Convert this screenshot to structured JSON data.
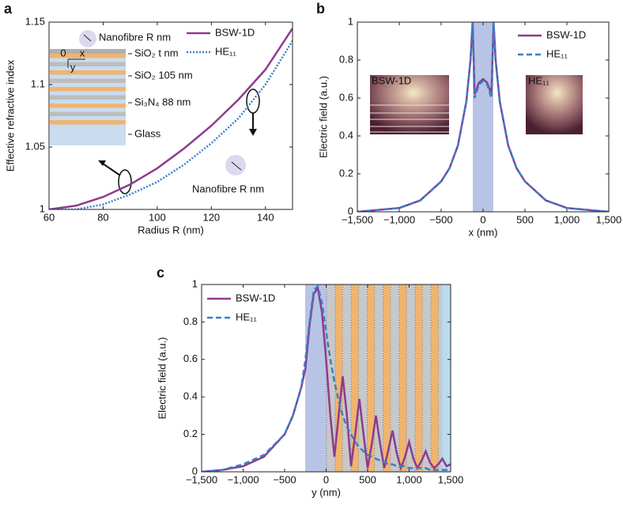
{
  "chart_data": [
    {
      "type": "line",
      "title": "a",
      "x_label": "Radius R (nm)",
      "y_label": "Effective refractive index",
      "x": [
        60,
        70,
        80,
        90,
        100,
        110,
        120,
        130,
        140,
        150
      ],
      "series": [
        {
          "name": "BSW-1D",
          "color": "#8e3a8f",
          "style": "solid",
          "values": [
            1.0,
            1.003,
            1.01,
            1.02,
            1.033,
            1.049,
            1.067,
            1.088,
            1.112,
            1.145
          ]
        },
        {
          "name": "HE₁₁",
          "color": "#3b7fc4",
          "style": "dotted",
          "values": [
            1.0,
            1.0,
            1.004,
            1.012,
            1.022,
            1.036,
            1.053,
            1.073,
            1.1,
            1.135
          ]
        }
      ],
      "xlim": [
        60,
        150
      ],
      "xticks": [
        60,
        80,
        100,
        120,
        140
      ],
      "ylim": [
        1,
        1.15
      ],
      "yticks": [
        1,
        1.05,
        1.1,
        1.15
      ],
      "legend": "upper right",
      "annotations": [
        "Nanofibre R nm",
        "SiO₂ t nm",
        "SiO₂ 105 nm",
        "Si₃N₄ 88 nm",
        "Glass",
        "Nanofibre R nm",
        "0",
        "x",
        "y"
      ]
    },
    {
      "type": "line",
      "title": "b",
      "x_label": "x (nm)",
      "y_label": "Electric field (a.u.)",
      "x": [
        -1500,
        -1250,
        -1000,
        -750,
        -500,
        -400,
        -300,
        -200,
        -150,
        -125,
        -100,
        -50,
        0,
        50,
        100,
        125,
        150,
        200,
        300,
        400,
        500,
        750,
        1000,
        1250,
        1500
      ],
      "series": [
        {
          "name": "BSW-1D",
          "color": "#8e3a8f",
          "style": "solid",
          "values": [
            0,
            0.01,
            0.02,
            0.06,
            0.16,
            0.23,
            0.35,
            0.58,
            0.8,
            1.0,
            0.62,
            0.68,
            0.7,
            0.68,
            0.62,
            1.0,
            0.8,
            0.58,
            0.35,
            0.23,
            0.16,
            0.06,
            0.02,
            0.01,
            0
          ]
        },
        {
          "name": "HE₁₁",
          "color": "#3b7fc4",
          "style": "dashed",
          "values": [
            0,
            0.01,
            0.02,
            0.06,
            0.16,
            0.23,
            0.35,
            0.58,
            0.8,
            1.0,
            0.6,
            0.67,
            0.69,
            0.67,
            0.6,
            1.0,
            0.8,
            0.58,
            0.35,
            0.23,
            0.16,
            0.06,
            0.02,
            0.01,
            0
          ]
        }
      ],
      "xlim": [
        -1500,
        1500
      ],
      "xticks": [
        {
          "value": -1500,
          "label": "−1,500"
        },
        {
          "value": -1000,
          "label": "−1,000"
        },
        {
          "value": -500,
          "label": "−500"
        },
        0,
        500,
        {
          "value": 1000,
          "label": "1,000"
        },
        {
          "value": 1500,
          "label": "1,500"
        }
      ],
      "ylim": [
        0,
        1
      ],
      "yticks": [
        0,
        0.2,
        0.4,
        0.6,
        0.8,
        1
      ],
      "legend": "upper right",
      "annotations": [
        "BSW-1D",
        "HE₁₁"
      ]
    },
    {
      "type": "line",
      "title": "c",
      "x_label": "y (nm)",
      "y_label": "Electric field (a.u.)",
      "x": [
        -1500,
        -1250,
        -1000,
        -750,
        -500,
        -400,
        -300,
        -250,
        -200,
        -150,
        -100,
        -50,
        0,
        50,
        100,
        150,
        200,
        250,
        300,
        350,
        400,
        450,
        500,
        550,
        600,
        650,
        700,
        750,
        800,
        850,
        900,
        950,
        1000,
        1050,
        1100,
        1150,
        1200,
        1250,
        1300,
        1350,
        1400,
        1450,
        1500
      ],
      "series": [
        {
          "name": "BSW-1D",
          "color": "#8e3a8f",
          "style": "solid",
          "values": [
            0,
            0.01,
            0.03,
            0.08,
            0.2,
            0.3,
            0.45,
            0.55,
            0.78,
            0.95,
            0.98,
            0.85,
            0.6,
            0.3,
            0.08,
            0.3,
            0.51,
            0.3,
            0.03,
            0.2,
            0.39,
            0.2,
            0.02,
            0.15,
            0.3,
            0.15,
            0.02,
            0.12,
            0.22,
            0.1,
            0.02,
            0.08,
            0.16,
            0.07,
            0.02,
            0.06,
            0.11,
            0.05,
            0.02,
            0.04,
            0.07,
            0.03,
            0.04
          ]
        },
        {
          "name": "HE₁₁",
          "color": "#3b7fc4",
          "style": "dashed",
          "values": [
            0,
            0.01,
            0.04,
            0.09,
            0.2,
            0.3,
            0.45,
            0.6,
            0.8,
            0.97,
            0.99,
            0.9,
            0.75,
            0.6,
            0.48,
            0.38,
            0.3,
            0.24,
            0.2,
            0.16,
            0.13,
            0.11,
            0.09,
            0.08,
            0.07,
            0.06,
            0.05,
            0.04,
            0.04,
            0.03,
            0.03,
            0.03,
            0.02,
            0.02,
            0.02,
            0.02,
            0.02,
            0.01,
            0.01,
            0.01,
            0.01,
            0.01,
            0.01
          ]
        }
      ],
      "xlim": [
        -1500,
        1500
      ],
      "xticks": [
        {
          "value": -1500,
          "label": "−1,500"
        },
        {
          "value": -1000,
          "label": "−1,000"
        },
        {
          "value": -500,
          "label": "−500"
        },
        0,
        500,
        {
          "value": 1000,
          "label": "1,000"
        },
        {
          "value": 1500,
          "label": "1,500"
        }
      ],
      "ylim": [
        0,
        1
      ],
      "yticks": [
        0,
        0.2,
        0.4,
        0.6,
        0.8,
        1
      ],
      "legend": "upper left"
    }
  ]
}
